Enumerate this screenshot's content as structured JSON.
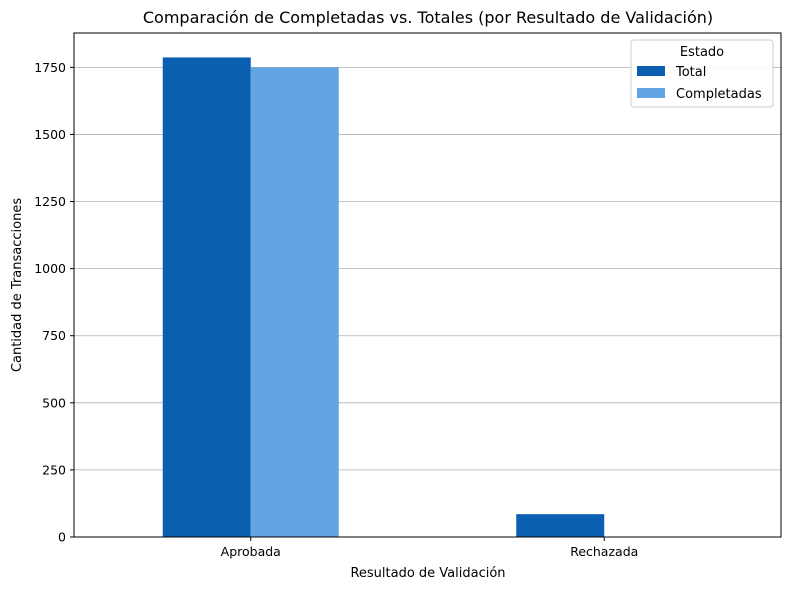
{
  "chart_data": {
    "type": "bar",
    "title": "Comparación de Completadas vs. Totales (por Resultado de Validación)",
    "xlabel": "Resultado de Validación",
    "ylabel": "Cantidad de Transacciones",
    "categories": [
      "Aprobada",
      "Rechazada"
    ],
    "series": [
      {
        "name": "Total",
        "values": [
          1787,
          85
        ],
        "color": "#0a5fb0"
      },
      {
        "name": "Completadas",
        "values": [
          1750,
          0
        ],
        "color": "#62a5e3"
      }
    ],
    "ylim": [
      0,
      1878
    ],
    "yticks": [
      0,
      250,
      500,
      750,
      1000,
      1250,
      1500,
      1750
    ],
    "grid": "y",
    "legend": {
      "title": "Estado",
      "position": "top-right"
    }
  }
}
